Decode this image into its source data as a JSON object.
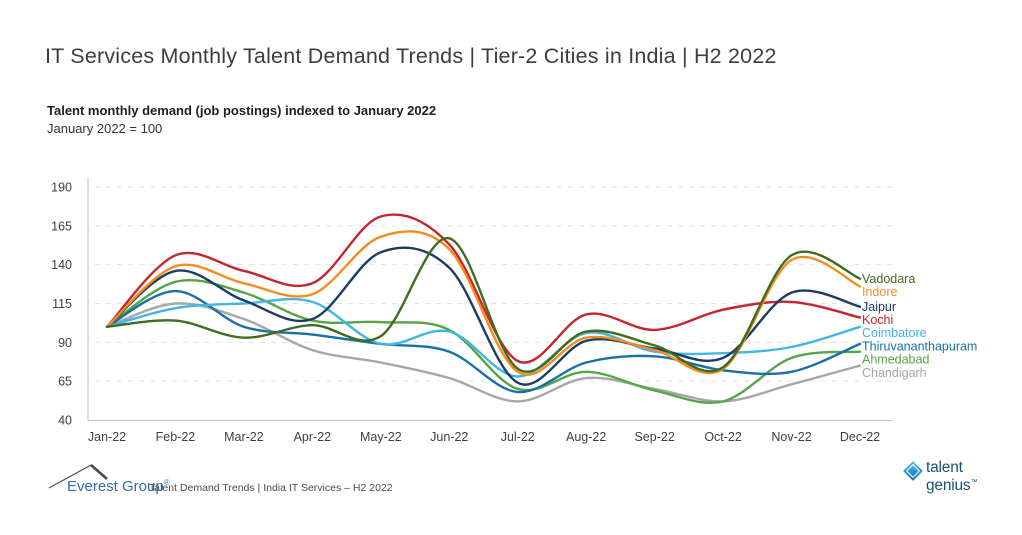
{
  "header": {
    "title": "IT Services Monthly Talent Demand Trends | Tier-2 Cities in India | H2 2022",
    "subtitle_bold": "Talent monthly demand (job postings) indexed to January 2022",
    "subtitle_note": "January 2022 = 100"
  },
  "chart_data": {
    "type": "line",
    "title": "Talent monthly demand (job postings) indexed to January 2022",
    "x": [
      "Jan-22",
      "Feb-22",
      "Mar-22",
      "Apr-22",
      "May-22",
      "Jun-22",
      "Jul-22",
      "Aug-22",
      "Sep-22",
      "Oct-22",
      "Nov-22",
      "Dec-22"
    ],
    "ylim": [
      40,
      190
    ],
    "yticks": [
      40,
      65,
      90,
      115,
      140,
      165,
      190
    ],
    "grid": "horizontal-dashed",
    "legend_position": "right-of-line-ends",
    "line_style": "smooth",
    "series": [
      {
        "name": "Vadodara",
        "color": "#3f6d1f",
        "values": [
          100,
          104,
          93,
          101,
          94,
          157,
          73,
          97,
          88,
          74,
          146,
          131
        ]
      },
      {
        "name": "Indore",
        "color": "#f68b1e",
        "values": [
          100,
          139,
          128,
          121,
          158,
          150,
          71,
          93,
          85,
          73,
          143,
          126
        ]
      },
      {
        "name": "Jaipur",
        "color": "#1c3c64",
        "values": [
          100,
          136,
          117,
          105,
          148,
          138,
          64,
          91,
          86,
          80,
          122,
          113
        ]
      },
      {
        "name": "Kochi",
        "color": "#c4262e",
        "values": [
          100,
          146,
          136,
          128,
          171,
          153,
          78,
          108,
          98,
          111,
          116,
          106
        ]
      },
      {
        "name": "Coimbatore",
        "color": "#41b6e3",
        "values": [
          100,
          112,
          115,
          116,
          89,
          97,
          68,
          96,
          84,
          83,
          87,
          100
        ]
      },
      {
        "name": "Thiruvananthapuram",
        "color": "#1a6fa8",
        "values": [
          100,
          123,
          100,
          95,
          89,
          84,
          58,
          77,
          81,
          72,
          71,
          89
        ]
      },
      {
        "name": "Ahmedabad",
        "color": "#55a546",
        "values": [
          100,
          129,
          122,
          104,
          103,
          98,
          60,
          71,
          59,
          52,
          80,
          84
        ]
      },
      {
        "name": "Chandigarh",
        "color": "#a5a7a8",
        "values": [
          100,
          115,
          105,
          85,
          77,
          67,
          52,
          67,
          60,
          52,
          63,
          75
        ]
      }
    ]
  },
  "footer": {
    "everest": {
      "brand": "Everest Group",
      "reg": "®",
      "caption": "Talent Demand Trends | India IT Services – H2 2022"
    },
    "talentgenius": {
      "line1": "talent",
      "line2": "genius",
      "tm": "™"
    }
  },
  "colors": {
    "axis_line": "#c8c8c8",
    "grid_line": "#e2e2e2",
    "tick_text": "#3f3f3f",
    "title_text": "#3d3d3d",
    "everest_blue": "#2f6ea8",
    "talentgenius_blue": "#1d5270"
  }
}
